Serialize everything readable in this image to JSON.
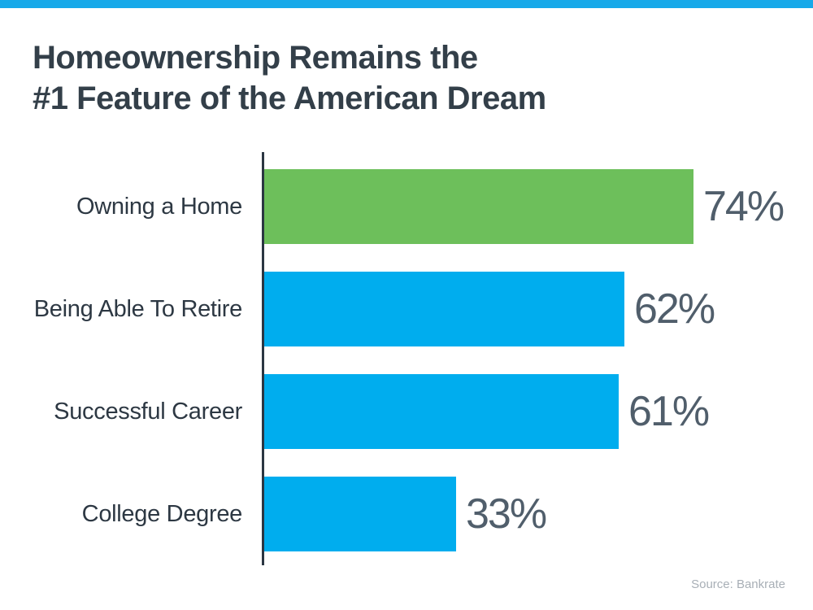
{
  "page": {
    "background": "#FFFFFF",
    "top_strip_color": "#17A9E9"
  },
  "title": {
    "line1": "Homeownership Remains the",
    "line2": "#1 Feature of the American Dream",
    "color": "#333F49"
  },
  "source": "Source: Bankrate",
  "chart_data": {
    "type": "bar",
    "orientation": "horizontal",
    "title": "Homeownership Remains the #1 Feature of the American Dream",
    "categories": [
      "Owning a Home",
      "Being Able To Retire",
      "Successful Career",
      "College Degree"
    ],
    "values": [
      74,
      62,
      61,
      33
    ],
    "value_labels": [
      "74%",
      "62%",
      "61%",
      "33%"
    ],
    "bar_colors": [
      "#6DBF5B",
      "#00ADEE",
      "#00ADEE",
      "#00ADEE"
    ],
    "highlight_color": "#6DBF5B",
    "default_color": "#00ADEE",
    "xlim": [
      0,
      100
    ],
    "grid": false,
    "legend": false,
    "axis_line_color": "#2B3642",
    "category_label_color": "#2D3843",
    "value_label_color": "#505E6B"
  }
}
